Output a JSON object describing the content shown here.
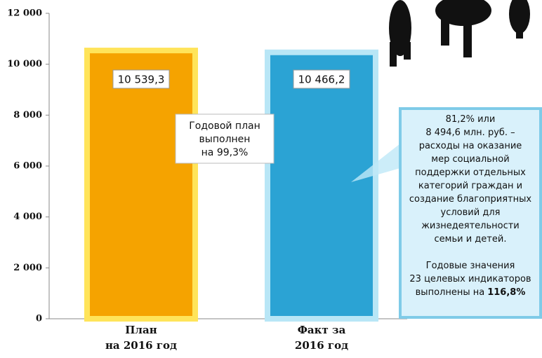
{
  "chart_data": {
    "type": "bar",
    "categories": [
      [
        "План",
        "на 2016 год"
      ],
      [
        "Факт за",
        "2016 год"
      ]
    ],
    "values": [
      10539.3,
      10466.2
    ],
    "value_labels": [
      "10 539,3",
      "10 466,2"
    ],
    "colors": [
      "#f5a300",
      "#2ba3d4"
    ],
    "ylim": [
      0,
      12000
    ],
    "yticks": [
      0,
      {
        "value": 2000,
        "label": "2 000"
      },
      {
        "value": 4000,
        "label": "4 000"
      },
      {
        "value": 6000,
        "label": "6 000"
      },
      {
        "value": 8000,
        "label": "8 000"
      },
      {
        "value": 10000,
        "label": "10 000"
      },
      {
        "value": 12000,
        "label": "12 000"
      }
    ],
    "annotations": [
      {
        "lines": [
          "Годовой план",
          "выполнен",
          "на 99,3%"
        ]
      },
      {
        "lines": [
          "81,2% или",
          "8 494,6 млн. руб.   –",
          "расходы на оказание",
          "мер социальной",
          "поддержки отдельных",
          "категорий граждан и",
          "создание благоприятных",
          "условий для",
          "жизнедеятельности",
          "семьи и детей.",
          "",
          "Годовые значения",
          "23 целевых индикаторов",
          "выполнены на"
        ],
        "emphasis": "116,8%"
      }
    ]
  }
}
